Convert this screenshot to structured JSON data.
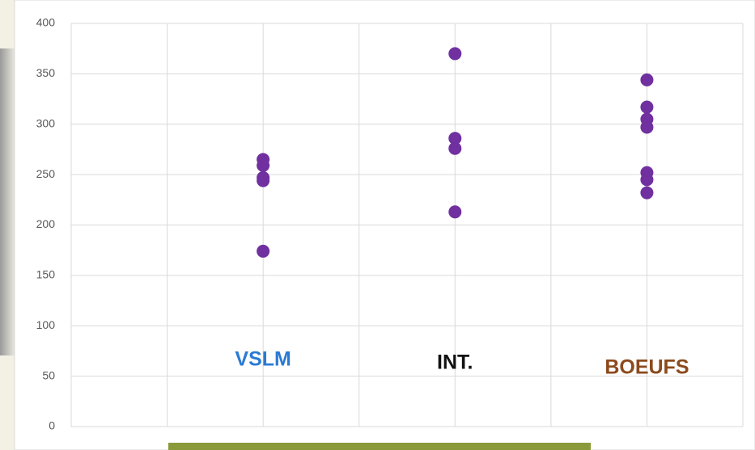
{
  "chart_data": {
    "type": "scatter",
    "x": [
      2,
      2,
      2,
      2,
      2,
      4,
      4,
      4,
      4,
      6,
      6,
      6,
      6,
      6,
      6,
      6
    ],
    "values": [
      265,
      259,
      247,
      244,
      174,
      370,
      286,
      276,
      213,
      344,
      317,
      305,
      297,
      252,
      245,
      232
    ],
    "color": "#7030a0",
    "xlim": [
      0,
      7
    ],
    "xticks": [
      0,
      1,
      2,
      3,
      4,
      5,
      6,
      7
    ],
    "ylim": [
      0,
      400
    ],
    "yticks": [
      0,
      50,
      100,
      150,
      200,
      250,
      300,
      350,
      400
    ],
    "grid": true,
    "annotations": [
      {
        "text": "VSLM",
        "color": "#2a7ad4"
      },
      {
        "text": "INT.",
        "color": "#111111"
      },
      {
        "text": "BOEUFS",
        "color": "#8c4a1c"
      }
    ]
  }
}
